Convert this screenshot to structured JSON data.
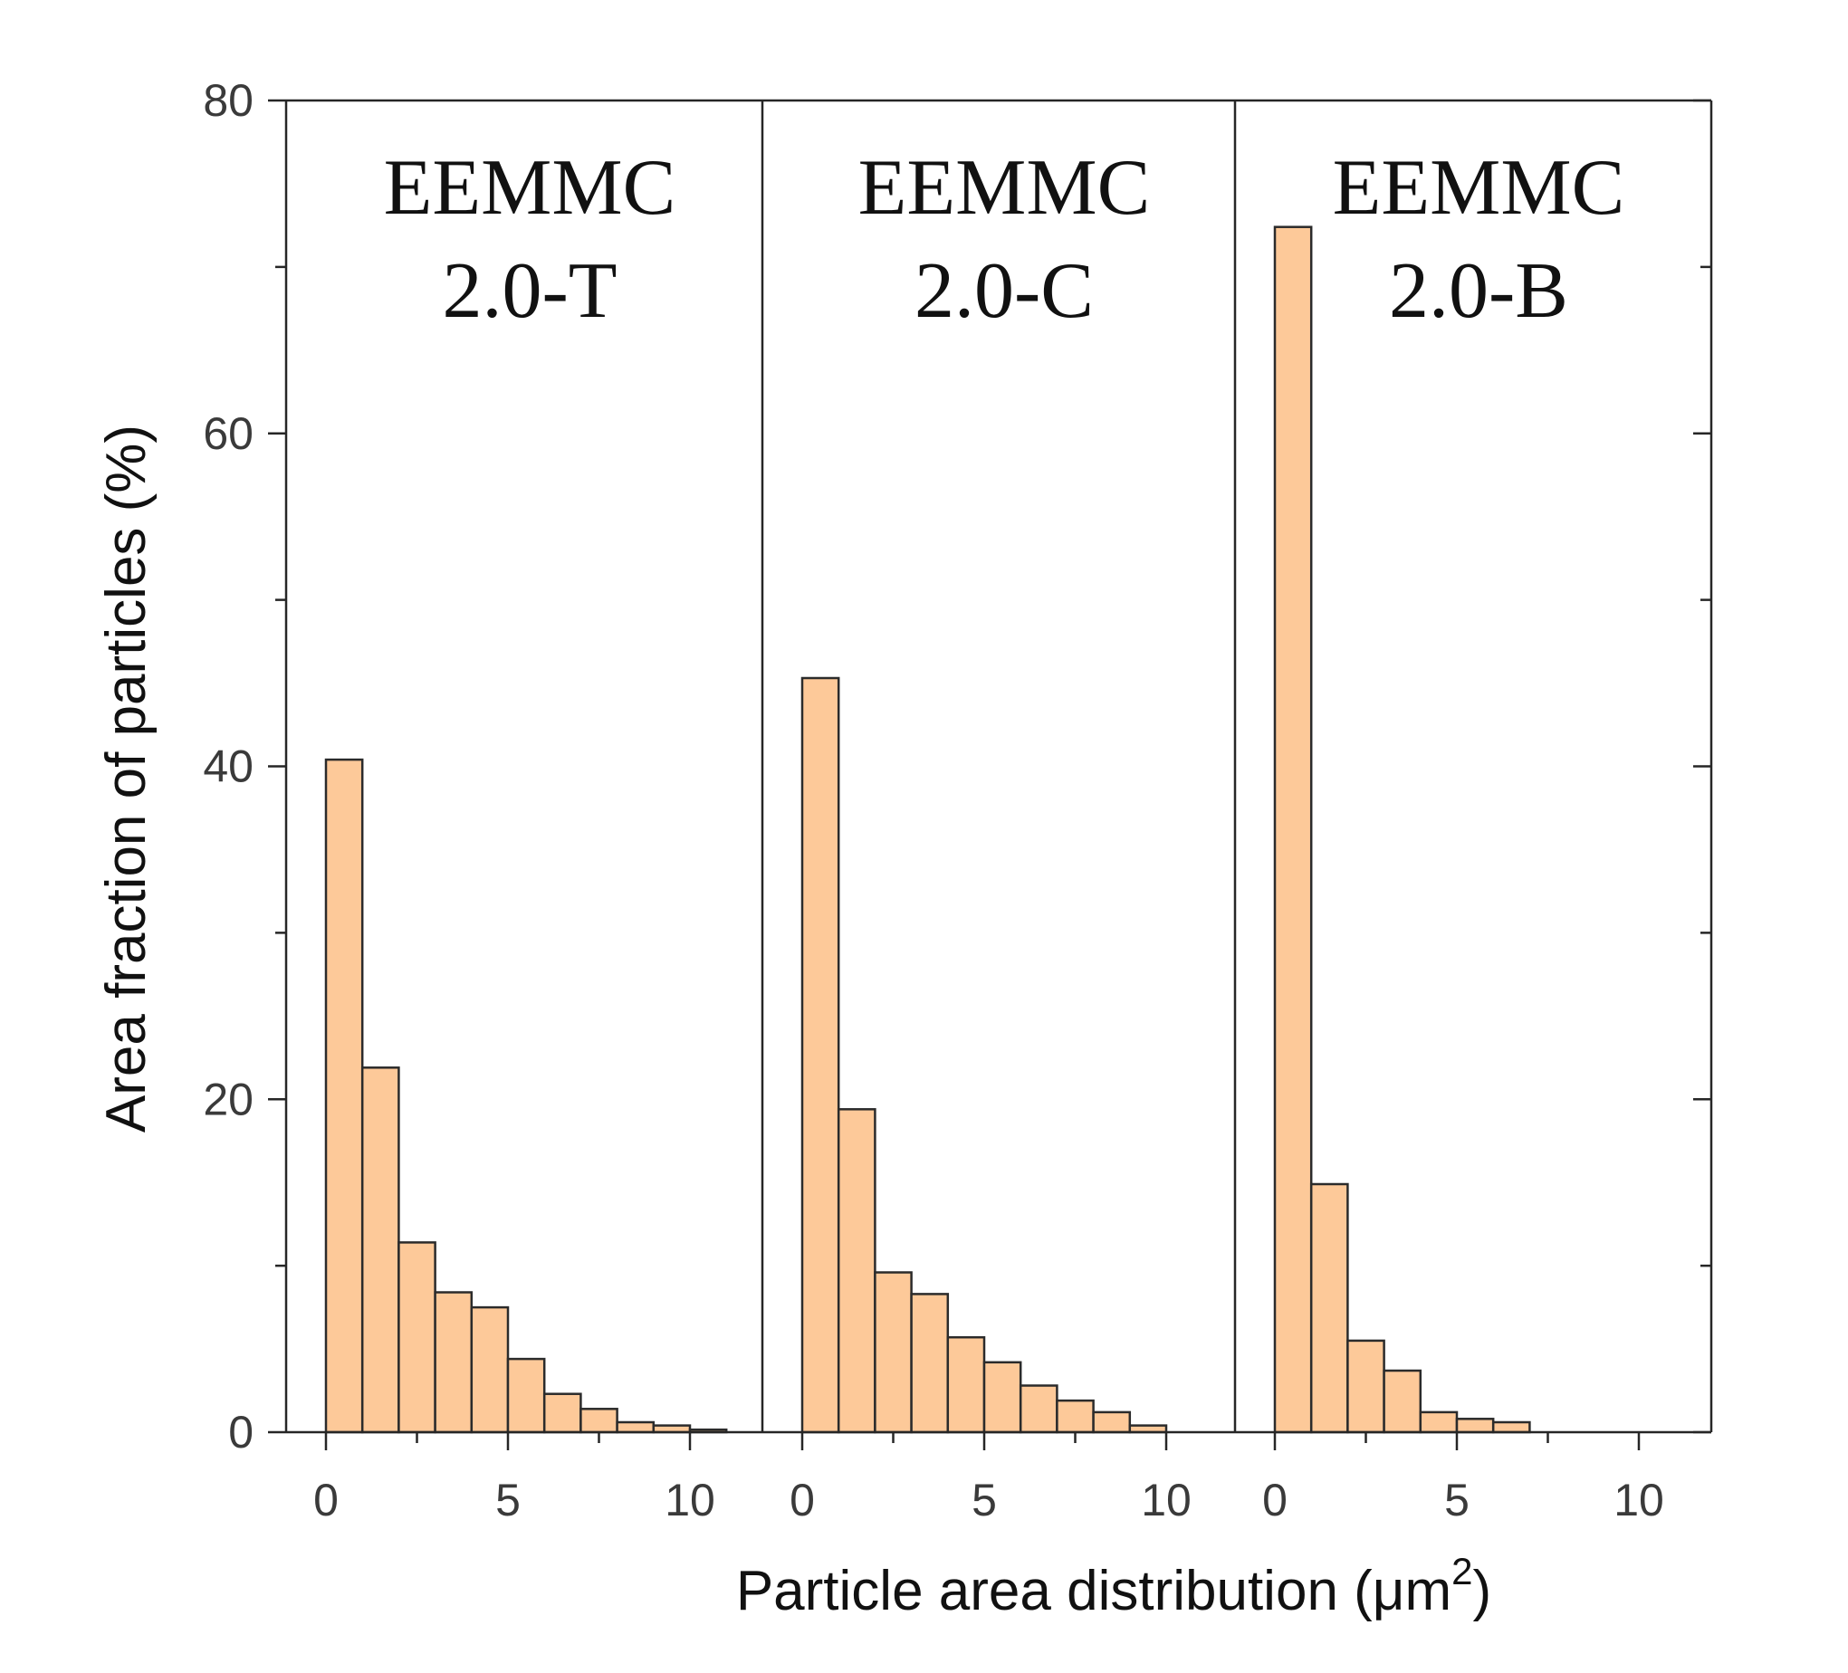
{
  "chart_data": {
    "type": "bar",
    "ylabel": "Area fraction of particles (%)",
    "xlabel_main": "Particle area distribution (μm",
    "xlabel_sup": "2",
    "xlabel_close": ")",
    "ylim": [
      0,
      80
    ],
    "y_ticks": [
      0,
      20,
      40,
      60,
      80
    ],
    "y_tick_labels": [
      "0",
      "20",
      "40",
      "60",
      "80"
    ],
    "xlim": [
      -1,
      11.8
    ],
    "x_ticks": [
      0,
      5,
      10
    ],
    "x_tick_labels": [
      "0",
      "5",
      "10"
    ],
    "bin_width": 1,
    "bar_color": "#fdc999",
    "edge_color": "#2b2b2b",
    "panels": [
      {
        "label_line1": "EEMMC",
        "label_line2": "2.0-T",
        "bin_centers": [
          0.5,
          1.5,
          2.5,
          3.5,
          4.5,
          5.5,
          6.5,
          7.5,
          8.5,
          9.5,
          10.5
        ],
        "values": [
          40.4,
          21.9,
          11.4,
          8.4,
          7.5,
          4.4,
          2.3,
          1.4,
          0.6,
          0.4,
          0.15
        ]
      },
      {
        "label_line1": "EEMMC",
        "label_line2": "2.0-C",
        "bin_centers": [
          0.5,
          1.5,
          2.5,
          3.5,
          4.5,
          5.5,
          6.5,
          7.5,
          8.5,
          9.5
        ],
        "values": [
          45.3,
          19.4,
          9.6,
          8.3,
          5.7,
          4.2,
          2.8,
          1.9,
          1.2,
          0.4
        ]
      },
      {
        "label_line1": "EEMMC",
        "label_line2": "2.0-B",
        "bin_centers": [
          0.5,
          1.5,
          2.5,
          3.5,
          4.5,
          5.5,
          6.5
        ],
        "values": [
          72.4,
          14.9,
          5.5,
          3.7,
          1.2,
          0.8,
          0.6
        ]
      }
    ]
  }
}
